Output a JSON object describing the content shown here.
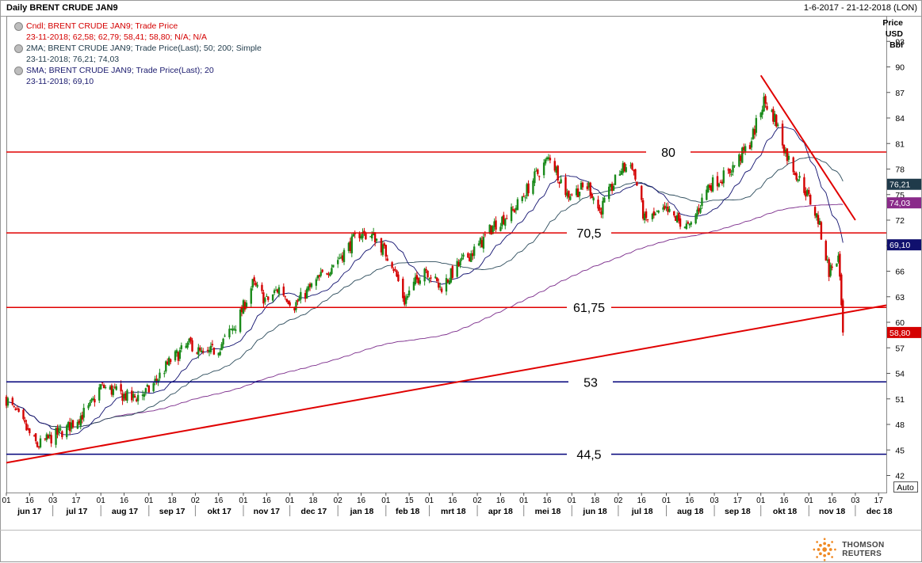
{
  "header": {
    "title": "Daily BRENT CRUDE JAN9",
    "range": "1-6-2017 - 21-12-2018 (LON)"
  },
  "legend": [
    {
      "name": "Cndl; BRENT CRUDE JAN9; Trade Price",
      "values": "23-11-2018; 62,58; 62,79; 58,41; 58,80; N/A; N/A",
      "color": "#d40000"
    },
    {
      "name": "2MA; BRENT CRUDE JAN9; Trade Price(Last); 50; 200; Simple",
      "values": "23-11-2018; 76,21; 74,03",
      "color": "#1f3a4a"
    },
    {
      "name": "SMA; BRENT CRUDE JAN9; Trade Price(Last); 20",
      "values": "23-11-2018; 69,10",
      "color": "#1a1a6e"
    }
  ],
  "colors": {
    "up": "#1a8a1a",
    "down": "#d40000",
    "resistance": "#e00000",
    "support": "#00007a",
    "ma50": "#2a4a5a",
    "ma200": "#7a2a8a",
    "sma20": "#10106e"
  },
  "axis": {
    "unit": [
      "Price",
      "USD",
      "Bbl"
    ],
    "auto_label": "Auto",
    "y_ticks": [
      42,
      45,
      48,
      51,
      54,
      57,
      60,
      63,
      66,
      69,
      72,
      75,
      78,
      81,
      84,
      87,
      90,
      93
    ]
  },
  "chart_data": {
    "type": "candlestick",
    "instrument": "BRENT CRUDE JAN9",
    "date_range": [
      "2017-06-01",
      "2018-12-21"
    ],
    "ylim": [
      40,
      96
    ],
    "grid": false,
    "x_tick_days": [
      "01",
      "16",
      "03",
      "17",
      "01",
      "16",
      "01",
      "18",
      "02",
      "16",
      "01",
      "16",
      "01",
      "18",
      "02",
      "16",
      "01",
      "15",
      "01",
      "16",
      "02",
      "16",
      "01",
      "16",
      "01",
      "18",
      "02",
      "16",
      "01",
      "16",
      "03",
      "17",
      "01",
      "16",
      "01",
      "16",
      "03",
      "17"
    ],
    "x_months": [
      "jun 17",
      "jul 17",
      "aug 17",
      "sep 17",
      "okt 17",
      "nov 17",
      "dec 17",
      "jan 18",
      "feb 18",
      "mrt 18",
      "apr 18",
      "mei 18",
      "jun 18",
      "jul 18",
      "aug 18",
      "sep 18",
      "okt 18",
      "nov 18",
      "dec 18"
    ],
    "price_path": [
      [
        "2017-06-01",
        51
      ],
      [
        "2017-06-21",
        45.5
      ],
      [
        "2017-07-10",
        47.5
      ],
      [
        "2017-07-25",
        50
      ],
      [
        "2017-08-01",
        52.5
      ],
      [
        "2017-08-21",
        51
      ],
      [
        "2017-09-01",
        52
      ],
      [
        "2017-09-15",
        55.5
      ],
      [
        "2017-09-28",
        57.5
      ],
      [
        "2017-10-06",
        56
      ],
      [
        "2017-10-16",
        57
      ],
      [
        "2017-10-28",
        60
      ],
      [
        "2017-11-07",
        64.5
      ],
      [
        "2017-11-16",
        62.5
      ],
      [
        "2017-11-24",
        64
      ],
      [
        "2017-12-04",
        62
      ],
      [
        "2017-12-14",
        64
      ],
      [
        "2018-01-04",
        68
      ],
      [
        "2018-01-15",
        70.5
      ],
      [
        "2018-01-25",
        70
      ],
      [
        "2018-02-05",
        67
      ],
      [
        "2018-02-13",
        62.5
      ],
      [
        "2018-02-26",
        66.5
      ],
      [
        "2018-03-08",
        64
      ],
      [
        "2018-03-19",
        66.5
      ],
      [
        "2018-04-02",
        69
      ],
      [
        "2018-04-12",
        71.5
      ],
      [
        "2018-04-24",
        73
      ],
      [
        "2018-05-08",
        77
      ],
      [
        "2018-05-18",
        79.5
      ],
      [
        "2018-05-29",
        75
      ],
      [
        "2018-06-12",
        76
      ],
      [
        "2018-06-19",
        73
      ],
      [
        "2018-07-03",
        78
      ],
      [
        "2018-07-10",
        78.5
      ],
      [
        "2018-07-18",
        72
      ],
      [
        "2018-08-01",
        73
      ],
      [
        "2018-08-16",
        71
      ],
      [
        "2018-08-28",
        76
      ],
      [
        "2018-09-10",
        77.5
      ],
      [
        "2018-09-24",
        81
      ],
      [
        "2018-10-03",
        86
      ],
      [
        "2018-10-10",
        84
      ],
      [
        "2018-10-18",
        79.5
      ],
      [
        "2018-10-31",
        75
      ],
      [
        "2018-11-07",
        72
      ],
      [
        "2018-11-14",
        66
      ],
      [
        "2018-11-20",
        67.5
      ],
      [
        "2018-11-23",
        58.8
      ]
    ],
    "last_candle": {
      "date": "2018-11-23",
      "open": 62.58,
      "high": 62.79,
      "low": 58.41,
      "close": 58.8
    },
    "moving_averages": {
      "ma50": 76.21,
      "ma200": 74.03,
      "sma20": 69.1
    },
    "horizontal_levels": [
      {
        "value": 80,
        "label": "80",
        "color": "resistance"
      },
      {
        "value": 70.5,
        "label": "70,5",
        "color": "resistance"
      },
      {
        "value": 61.75,
        "label": "61,75",
        "color": "resistance"
      },
      {
        "value": 53,
        "label": "53",
        "color": "support"
      },
      {
        "value": 44.5,
        "label": "44,5",
        "color": "support"
      }
    ],
    "trendlines": [
      {
        "name": "rising support",
        "from": [
          "2017-06-01",
          43.5
        ],
        "to": [
          "2018-12-21",
          62
        ]
      },
      {
        "name": "falling resistance",
        "from": [
          "2018-10-01",
          89
        ],
        "to": [
          "2018-12-01",
          72
        ]
      }
    ],
    "price_tags": [
      {
        "value": 76.21,
        "label": "76,21",
        "bg": "#1f3a4a"
      },
      {
        "value": 74.03,
        "label": "74,03",
        "bg": "#8a2a8a"
      },
      {
        "value": 69.1,
        "label": "69,10",
        "bg": "#10106e"
      },
      {
        "value": 58.8,
        "label": "58,80",
        "bg": "#d40000"
      }
    ]
  },
  "branding": {
    "logo_text": "THOMSON REUTERS"
  }
}
